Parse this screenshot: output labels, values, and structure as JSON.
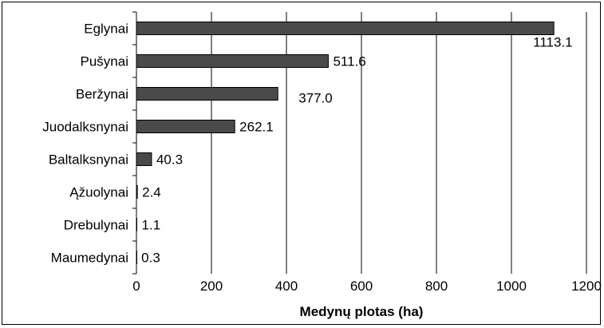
{
  "chart_data": {
    "type": "bar",
    "orientation": "horizontal",
    "categories": [
      "Eglynai",
      "Pušynai",
      "Beržynai",
      "Juodalksnynai",
      "Baltalksnynai",
      "Ąžuolynai",
      "Drebulynai",
      "Maumedynai"
    ],
    "values": [
      1113.1,
      511.6,
      377.0,
      262.1,
      40.3,
      2.4,
      1.1,
      0.3
    ],
    "data_labels": [
      "1113.1",
      "511.6",
      "377.0",
      "262.1",
      "40.3",
      "2.4",
      "1.1",
      "0.3"
    ],
    "xlabel": "Medynų plotas (ha)",
    "ylabel": "",
    "xlim": [
      0,
      1200
    ],
    "x_ticks": [
      "0",
      "200",
      "400",
      "600",
      "800",
      "1000",
      "1200"
    ],
    "grid": "vertical",
    "legend": "none",
    "colors": {
      "bar": "#4a4a4a",
      "bar_stroke": "#000000",
      "grid": "#000000",
      "text": "#000000"
    }
  }
}
